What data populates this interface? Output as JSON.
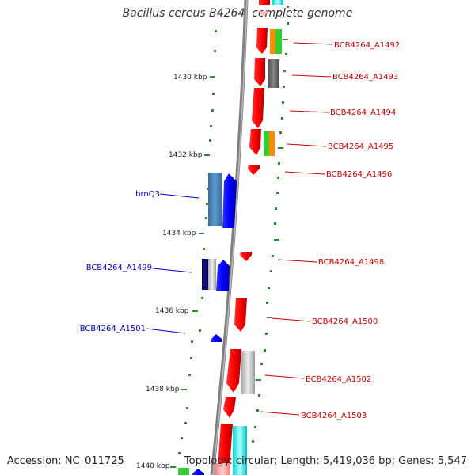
{
  "title": "Bacillus cereus B4264, complete genome",
  "footer": {
    "accession": "Accession: NC_011725",
    "summary": "Topology: circular; Length: 5,419,036 bp; Genes: 5,547"
  },
  "colors": {
    "backbone": "#7f7f7f",
    "tick": "#2e8b2e",
    "label_red": "#cc0000",
    "label_blue": "#0000cc"
  },
  "axis": {
    "ticks": [
      "1430 kbp",
      "1432 kbp",
      "1434 kbp",
      "1436 kbp",
      "1438 kbp",
      "1440 kbp"
    ]
  },
  "labels_right": [
    "BCB4264_A1492",
    "BCB4264_A1493",
    "BCB4264_A1494",
    "BCB4264_A1495",
    "BCB4264_A1496",
    "BCB4264_A1498",
    "BCB4264_A1500",
    "BCB4264_A1502",
    "BCB4264_A1503"
  ],
  "labels_left": [
    "brnQ3",
    "BCB4264_A1499",
    "BCB4264_A1501"
  ]
}
